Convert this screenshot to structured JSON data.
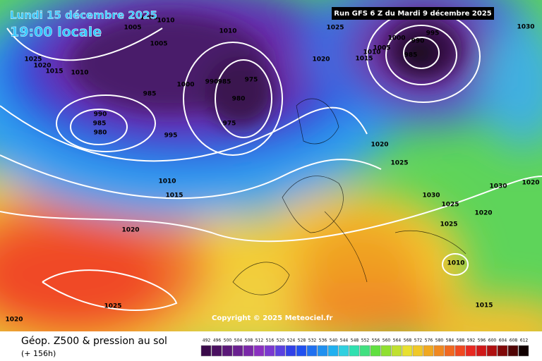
{
  "header": {
    "date": "Lundi 15 décembre 2025",
    "time": "19:00 locale",
    "run": "Run GFS 6 Z du Mardi 9 décembre 2025"
  },
  "copyright": "Copyright © 2025 Meteociel.fr",
  "footer": {
    "title": "Géop. Z500 & pression au sol",
    "lead": "(+ 156h)"
  },
  "isobar_labels": [
    "1005",
    "1010",
    "1005",
    "1005",
    "1010",
    "1020",
    "1025",
    "1025",
    "1020",
    "1015",
    "1010",
    "985",
    "1000",
    "990",
    "985",
    "975",
    "980",
    "975",
    "990",
    "985",
    "980",
    "995",
    "1010",
    "1015",
    "1020",
    "1025",
    "1020",
    "1000",
    "995",
    "990",
    "985",
    "1005",
    "1010",
    "1015",
    "1030",
    "1020",
    "1025",
    "1030",
    "1025",
    "1030",
    "1020",
    "1020",
    "1025",
    "1010",
    "1015"
  ],
  "colorbar": [
    492,
    496,
    500,
    504,
    508,
    512,
    516,
    520,
    524,
    528,
    532,
    536,
    540,
    544,
    548,
    552,
    556,
    560,
    564,
    568,
    572,
    576,
    580,
    584,
    588,
    592,
    596,
    600,
    604,
    608,
    612
  ]
}
